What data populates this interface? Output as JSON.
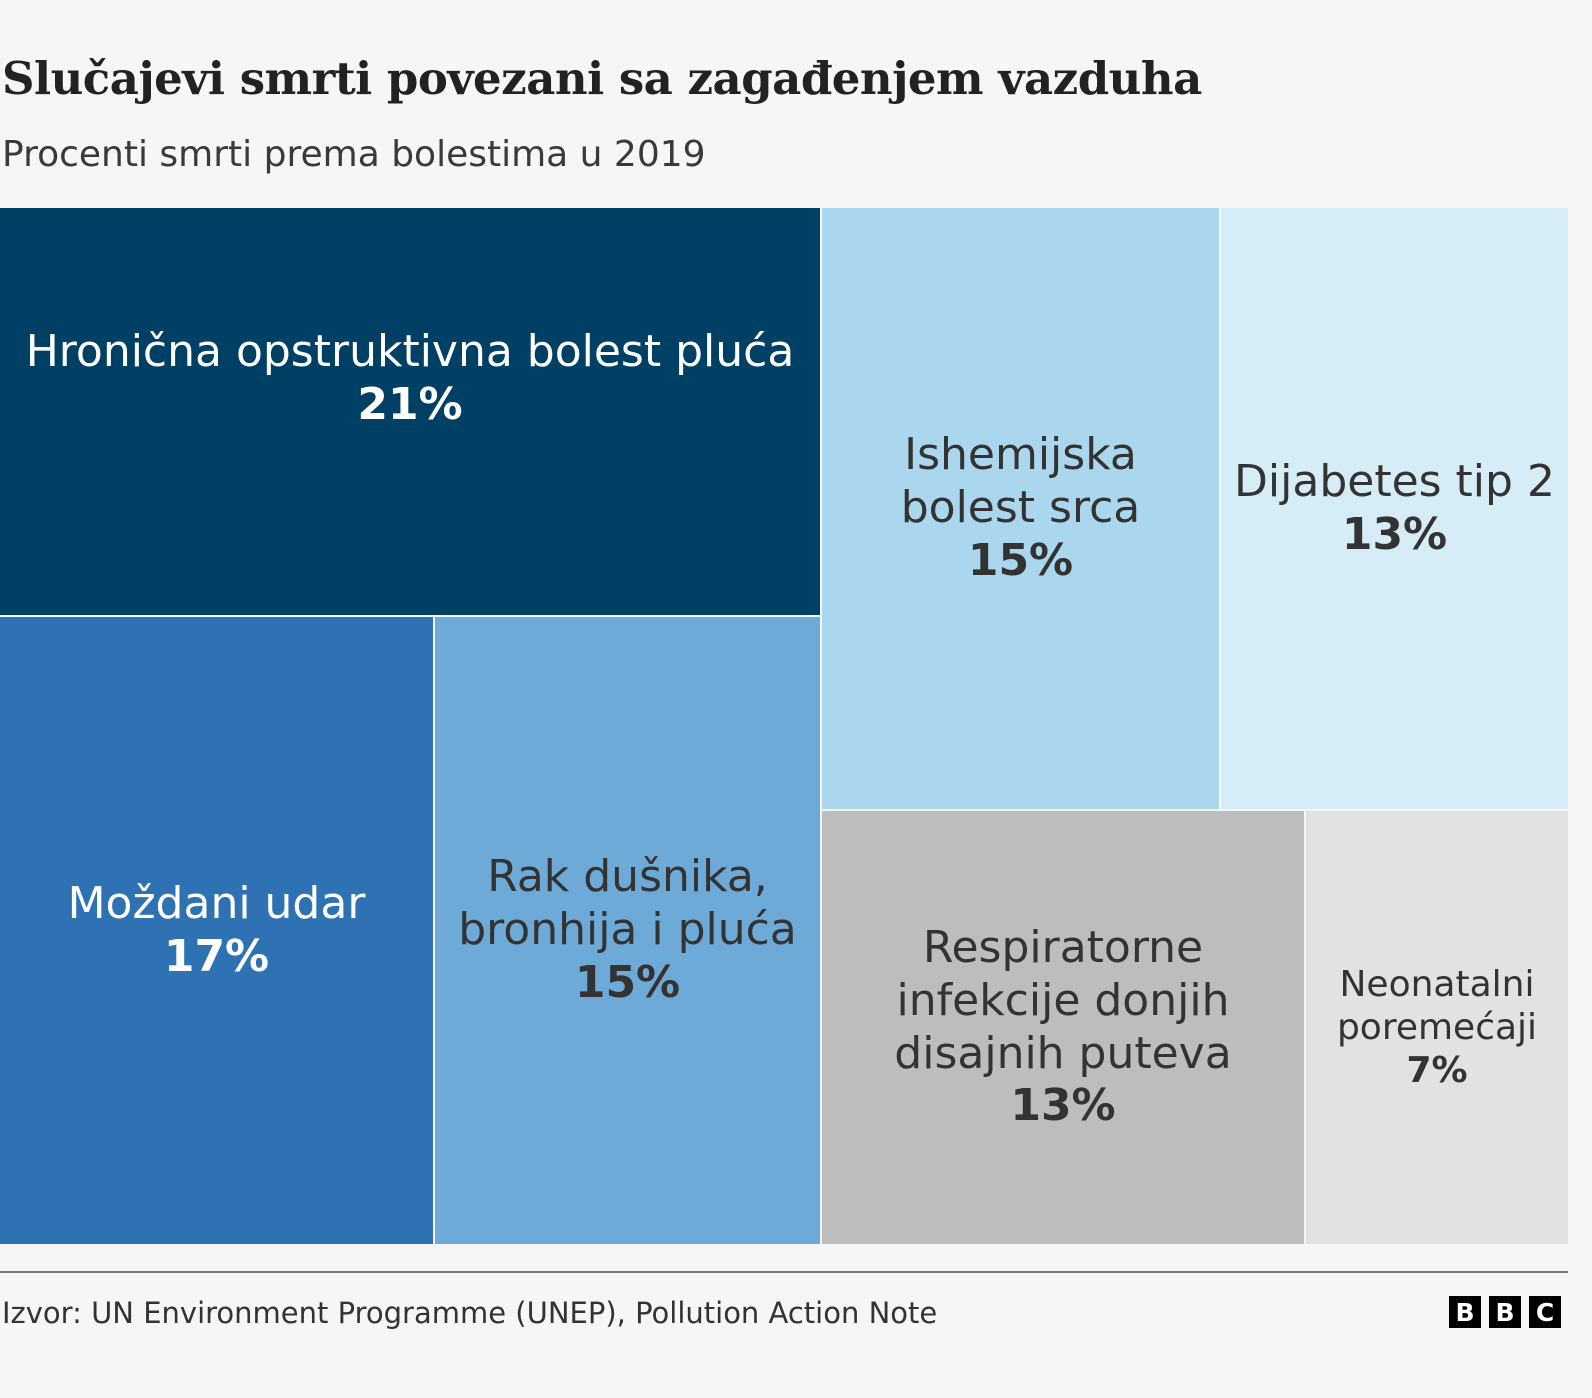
{
  "chart_data": {
    "type": "treemap",
    "title": "Slučajevi smrti povezani sa zagađenjem vazduha",
    "subtitle": "Procenti smrti prema bolestima u 2019",
    "unit": "%",
    "items": [
      {
        "label": "Hronična opstruktivna bolest pluća",
        "value": 21,
        "value_label": "21%",
        "color": "#004065",
        "text_color": "#ffffff"
      },
      {
        "label": "Moždani udar",
        "value": 17,
        "value_label": "17%",
        "color": "#2e72b3",
        "text_color": "#ffffff"
      },
      {
        "label": "Rak dušnika, bronhija i pluća",
        "value": 15,
        "value_label": "15%",
        "color": "#6eaad8",
        "text_color": "#333333"
      },
      {
        "label": "Ishemijska bolest srca",
        "value": 15,
        "value_label": "15%",
        "color": "#aad7ee",
        "text_color": "#333333"
      },
      {
        "label": "Dijabetes tip 2",
        "value": 13,
        "value_label": "13%",
        "color": "#d6edf7",
        "text_color": "#333333"
      },
      {
        "label": "Respiratorne infekcije donjih disajnih puteva",
        "value": 13,
        "value_label": "13%",
        "color": "#bdbdbd",
        "text_color": "#333333"
      },
      {
        "label": "Neonatalni poremećaji",
        "value": 7,
        "value_label": "7%",
        "color": "#e2e2e2",
        "text_color": "#333333"
      }
    ]
  },
  "footer": {
    "source": "Izvor: UN Environment Programme (UNEP), Pollution Action Note",
    "logo": [
      "B",
      "B",
      "C"
    ]
  },
  "background": "#f6f6f6"
}
